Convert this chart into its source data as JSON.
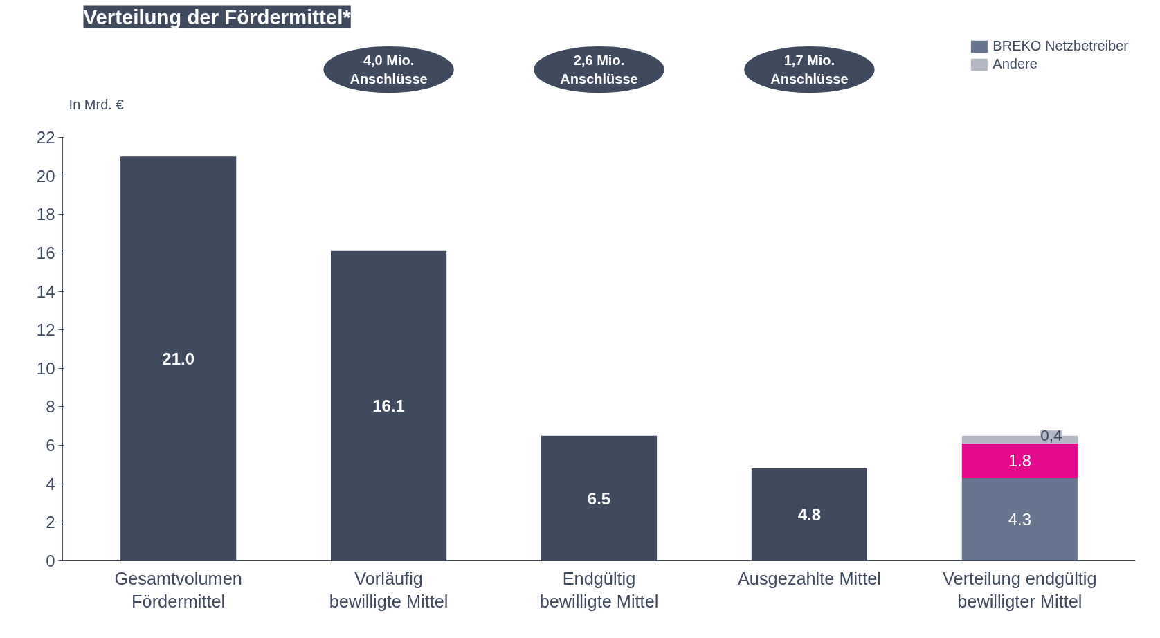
{
  "chart_data": {
    "type": "bar",
    "title": "Verteilung der Fördermittel*",
    "ylabel": "In Mrd. €",
    "categories": [
      "Gesamtvolumen\nFördermittel",
      "Vorläufig\nbewilligte Mittel",
      "Endgültig\nbewilligte Mittel",
      "Ausgezahlte Mittel",
      "Verteilung endgültig\nbewilligter Mittel"
    ],
    "stacked": true,
    "series": [
      {
        "color": "#3f4a5f",
        "values": [
          21.0,
          16.1,
          6.5,
          4.8,
          null
        ],
        "value_labels": [
          "21.0",
          "16.1",
          "6.5",
          "4.8",
          null
        ]
      },
      {
        "name": "BREKO Netzbetreiber",
        "color": "#67758e",
        "values": [
          null,
          null,
          null,
          null,
          4.3
        ],
        "value_labels": [
          null,
          null,
          null,
          null,
          "4.3"
        ]
      },
      {
        "color": "#e2098a",
        "values": [
          null,
          null,
          null,
          null,
          1.8
        ],
        "value_labels": [
          null,
          null,
          null,
          null,
          "1.8"
        ]
      },
      {
        "name": "Andere",
        "color": "#b3b8c4",
        "values": [
          null,
          null,
          null,
          null,
          0.4
        ],
        "value_labels": [
          null,
          null,
          null,
          null,
          "0,4"
        ]
      }
    ],
    "annotations": [
      "4,0 Mio.\nAnschlüsse",
      "2,6 Mio.\nAnschlüsse",
      "1,7 Mio.\nAnschlüsse"
    ],
    "ylim": [
      0,
      22
    ],
    "yticks": [
      0,
      2,
      4,
      6,
      8,
      10,
      12,
      14,
      16,
      18,
      20,
      22
    ],
    "grid": false,
    "legend": "top right"
  }
}
